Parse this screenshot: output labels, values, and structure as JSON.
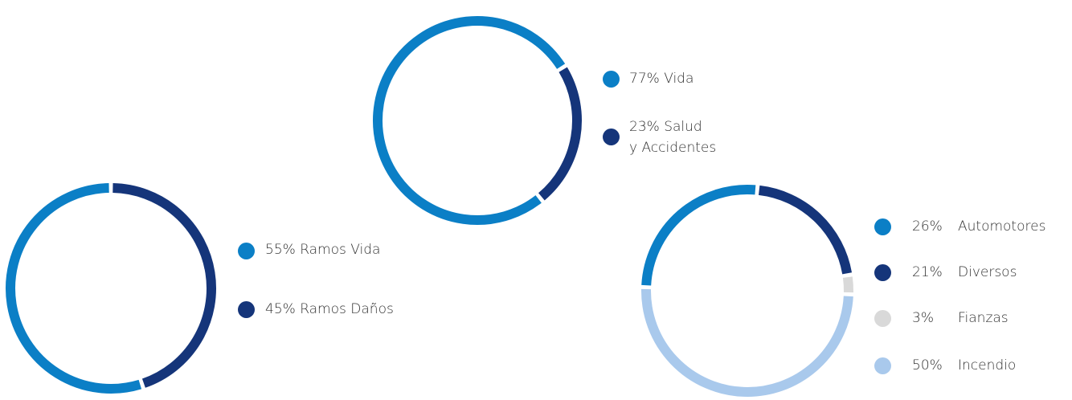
{
  "chart_data": [
    {
      "type": "pie",
      "series": [
        {
          "name": "Vida",
          "color": "#0b7fc6",
          "values": [
            77
          ],
          "value_labels": [
            "77%"
          ]
        },
        {
          "name": "Salud\ny Accidentes",
          "color": "#15357a",
          "values": [
            23
          ],
          "value_labels": [
            "23%"
          ]
        }
      ]
    },
    {
      "type": "pie",
      "series": [
        {
          "name": "Ramos Vida",
          "color": "#0b7fc6",
          "values": [
            55
          ],
          "value_labels": [
            "55%"
          ]
        },
        {
          "name": "Ramos Daños",
          "color": "#15357a",
          "values": [
            45
          ],
          "value_labels": [
            "45%"
          ]
        }
      ]
    },
    {
      "type": "pie",
      "series": [
        {
          "name": "Automotores",
          "color": "#0b7fc6",
          "values": [
            26
          ],
          "value_labels": [
            "26%"
          ]
        },
        {
          "name": "Diversos",
          "color": "#15357a",
          "values": [
            21
          ],
          "value_labels": [
            "21%"
          ]
        },
        {
          "name": "Fianzas",
          "color": "#d9d9d9",
          "values": [
            3
          ],
          "value_labels": [
            "3%"
          ]
        },
        {
          "name": "Incendio",
          "color": "#a9c9ec",
          "values": [
            50
          ],
          "value_labels": [
            "50%"
          ]
        }
      ]
    }
  ]
}
